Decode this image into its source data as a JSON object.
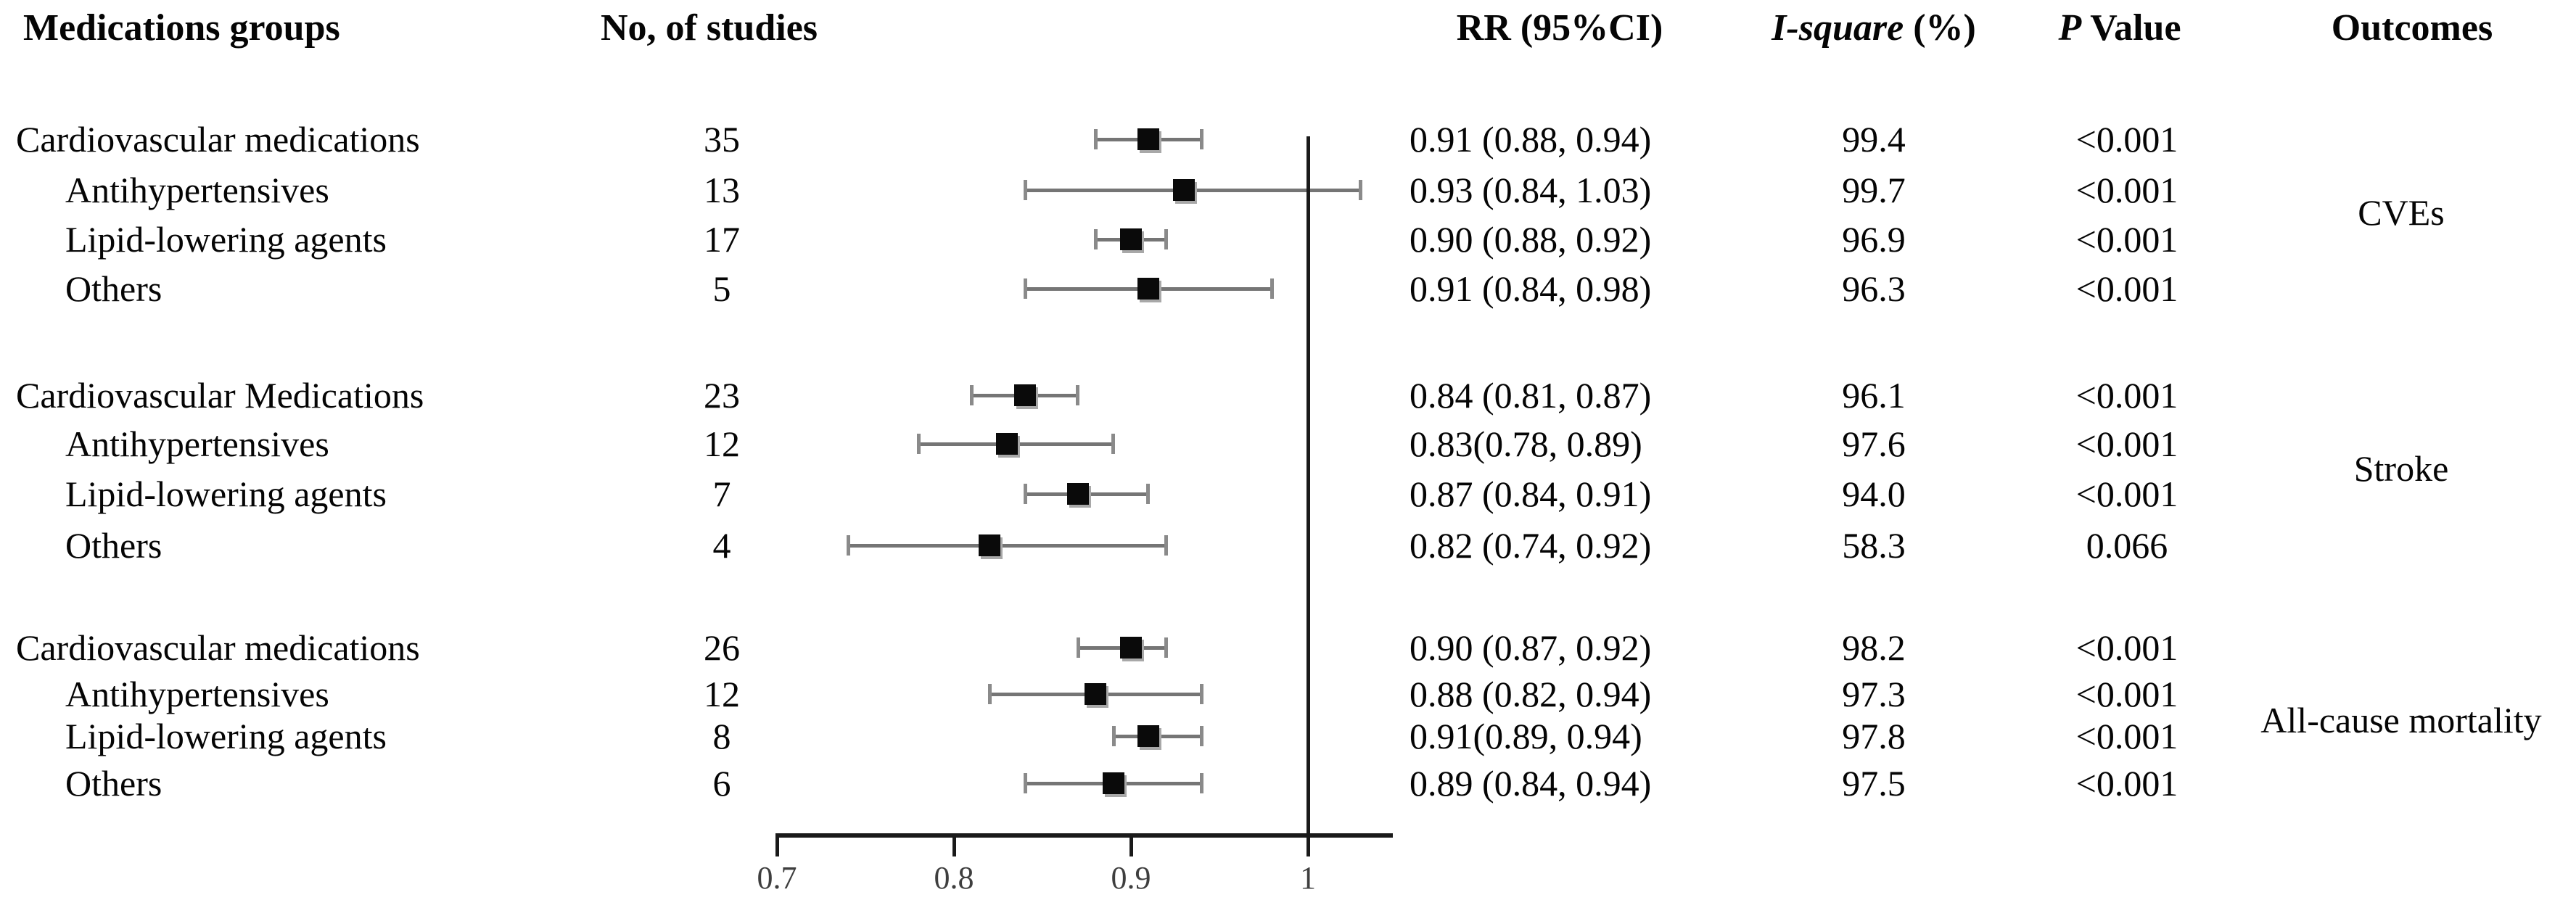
{
  "headers": {
    "medications_groups": "Medications groups",
    "no_of_studies": "No, of studies",
    "rr_ci": "RR (95%CI)",
    "i_square_main": "I-square",
    "i_square_unit": " (%)",
    "p_main": "P",
    "p_rest": " Value",
    "outcomes": "Outcomes"
  },
  "colors": {
    "text": "#050505",
    "axis": "#1a1a1a",
    "whisker": "#757575",
    "cap": "#8a8a8a",
    "marker": "#0a0a0a",
    "marker_shadow": "#a8a8a8",
    "tick_label": "#3e3e3e"
  },
  "chart_data": {
    "type": "scatter",
    "variant": "forest-plot",
    "title": "",
    "xlabel": "",
    "ylabel": "",
    "x_range": [
      0.7,
      1.045
    ],
    "x_ticks": [
      0.7,
      0.8,
      0.9,
      1
    ],
    "x_tick_labels": [
      "0.7",
      "0.8",
      "0.9",
      "1"
    ],
    "reference_line_x": 1.0,
    "grid": false,
    "legend": false,
    "groups": [
      {
        "outcome": "CVEs",
        "rows": [
          {
            "label": "Cardiovascular medications",
            "indent": false,
            "n": "35",
            "est": 0.91,
            "lo": 0.88,
            "hi": 0.94,
            "rr_text": "0.91 (0.88, 0.94)",
            "i_square": "99.4",
            "p": "<0.001"
          },
          {
            "label": "Antihypertensives",
            "indent": true,
            "n": "13",
            "est": 0.93,
            "lo": 0.84,
            "hi": 1.03,
            "rr_text": "0.93 (0.84, 1.03)",
            "i_square": "99.7",
            "p": "<0.001"
          },
          {
            "label": "Lipid-lowering agents",
            "indent": true,
            "n": "17",
            "est": 0.9,
            "lo": 0.88,
            "hi": 0.92,
            "rr_text": "0.90 (0.88, 0.92)",
            "i_square": "96.9",
            "p": "<0.001"
          },
          {
            "label": "Others",
            "indent": true,
            "n": "5",
            "est": 0.91,
            "lo": 0.84,
            "hi": 0.98,
            "rr_text": "0.91 (0.84, 0.98)",
            "i_square": "96.3",
            "p": "<0.001"
          }
        ]
      },
      {
        "outcome": "Stroke",
        "rows": [
          {
            "label": "Cardiovascular Medications",
            "indent": false,
            "n": "23",
            "est": 0.84,
            "lo": 0.81,
            "hi": 0.87,
            "rr_text": "0.84 (0.81, 0.87)",
            "i_square": "96.1",
            "p": "<0.001"
          },
          {
            "label": "Antihypertensives",
            "indent": true,
            "n": "12",
            "est": 0.83,
            "lo": 0.78,
            "hi": 0.89,
            "rr_text": "0.83(0.78, 0.89)",
            "i_square": "97.6",
            "p": "<0.001"
          },
          {
            "label": "Lipid-lowering agents",
            "indent": true,
            "n": "7",
            "est": 0.87,
            "lo": 0.84,
            "hi": 0.91,
            "rr_text": "0.87 (0.84, 0.91)",
            "i_square": "94.0",
            "p": "<0.001"
          },
          {
            "label": "Others",
            "indent": true,
            "n": "4",
            "est": 0.82,
            "lo": 0.74,
            "hi": 0.92,
            "rr_text": "0.82 (0.74, 0.92)",
            "i_square": "58.3",
            "p": "0.066"
          }
        ]
      },
      {
        "outcome": "All-cause mortality",
        "rows": [
          {
            "label": "Cardiovascular medications",
            "indent": false,
            "n": "26",
            "est": 0.9,
            "lo": 0.87,
            "hi": 0.92,
            "rr_text": "0.90 (0.87, 0.92)",
            "i_square": "98.2",
            "p": "<0.001"
          },
          {
            "label": "Antihypertensives",
            "indent": true,
            "n": "12",
            "est": 0.88,
            "lo": 0.82,
            "hi": 0.94,
            "rr_text": "0.88 (0.82, 0.94)",
            "i_square": "97.3",
            "p": "<0.001"
          },
          {
            "label": "Lipid-lowering agents",
            "indent": true,
            "n": "8",
            "est": 0.91,
            "lo": 0.89,
            "hi": 0.94,
            "rr_text": "0.91(0.89, 0.94)",
            "i_square": "97.8",
            "p": "<0.001"
          },
          {
            "label": "Others",
            "indent": true,
            "n": "6",
            "est": 0.89,
            "lo": 0.84,
            "hi": 0.94,
            "rr_text": "0.89 (0.84, 0.94)",
            "i_square": "97.5",
            "p": "<0.001"
          }
        ]
      }
    ]
  }
}
